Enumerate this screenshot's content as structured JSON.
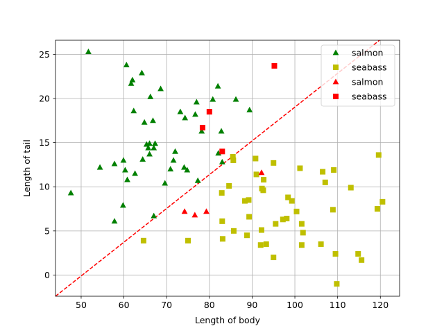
{
  "chart_data": {
    "type": "scatter",
    "title": "",
    "xlabel": "Length of body",
    "ylabel": "Length of tail",
    "xlim": [
      44,
      124.5
    ],
    "ylim": [
      -2.4,
      26.6
    ],
    "xticks": [
      50,
      60,
      70,
      80,
      90,
      100,
      110,
      120
    ],
    "yticks": [
      0,
      5,
      10,
      15,
      20,
      25
    ],
    "grid": true,
    "legend_position": "top-right",
    "decision_boundary": {
      "style": "dashed",
      "color": "#ff0000",
      "points": [
        [
          44,
          -2.4
        ],
        [
          119.8,
          26.6
        ]
      ]
    },
    "series": [
      {
        "name": "salmon",
        "marker": "triangle",
        "color": "#008000",
        "points": [
          [
            47.6,
            9.3
          ],
          [
            51.7,
            25.3
          ],
          [
            54.4,
            12.2
          ],
          [
            57.8,
            12.6
          ],
          [
            57.8,
            6.1
          ],
          [
            59.8,
            7.9
          ],
          [
            59.9,
            13.0
          ],
          [
            60.3,
            11.9
          ],
          [
            60.6,
            23.8
          ],
          [
            60.8,
            10.8
          ],
          [
            61.7,
            21.7
          ],
          [
            62.0,
            22.1
          ],
          [
            62.3,
            18.6
          ],
          [
            62.6,
            11.5
          ],
          [
            64.2,
            22.9
          ],
          [
            64.4,
            13.1
          ],
          [
            64.8,
            17.3
          ],
          [
            65.3,
            14.8
          ],
          [
            65.7,
            14.4
          ],
          [
            66.0,
            13.7
          ],
          [
            66.0,
            14.9
          ],
          [
            66.2,
            20.2
          ],
          [
            66.8,
            17.5
          ],
          [
            67.0,
            14.4
          ],
          [
            67.3,
            14.9
          ],
          [
            67.0,
            6.7
          ],
          [
            68.6,
            21.1
          ],
          [
            69.6,
            10.4
          ],
          [
            70.9,
            12.0
          ],
          [
            71.6,
            13.0
          ],
          [
            72.0,
            14.0
          ],
          [
            73.2,
            18.5
          ],
          [
            74.1,
            12.2
          ],
          [
            74.3,
            17.8
          ],
          [
            74.8,
            11.9
          ],
          [
            76.7,
            18.2
          ],
          [
            77.0,
            19.6
          ],
          [
            77.3,
            10.7
          ],
          [
            78.2,
            16.3
          ],
          [
            80.8,
            19.9
          ],
          [
            82.0,
            21.4
          ],
          [
            82.1,
            13.8
          ],
          [
            82.8,
            16.3
          ],
          [
            83.0,
            12.8
          ],
          [
            86.2,
            19.9
          ],
          [
            89.4,
            18.7
          ]
        ]
      },
      {
        "name": "seabass",
        "marker": "square",
        "color": "#bfbf00",
        "points": [
          [
            64.6,
            3.9
          ],
          [
            75.0,
            3.9
          ],
          [
            82.9,
            9.3
          ],
          [
            83.0,
            6.1
          ],
          [
            83.1,
            4.1
          ],
          [
            84.6,
            10.1
          ],
          [
            85.5,
            13.4
          ],
          [
            85.6,
            13.0
          ],
          [
            85.7,
            5.0
          ],
          [
            88.3,
            8.4
          ],
          [
            88.8,
            4.5
          ],
          [
            89.2,
            8.5
          ],
          [
            89.3,
            6.6
          ],
          [
            90.8,
            13.2
          ],
          [
            91.0,
            11.4
          ],
          [
            92.0,
            3.4
          ],
          [
            92.2,
            5.1
          ],
          [
            92.3,
            9.8
          ],
          [
            92.6,
            9.6
          ],
          [
            92.7,
            10.8
          ],
          [
            93.3,
            3.5
          ],
          [
            95.0,
            12.7
          ],
          [
            95.0,
            2.0
          ],
          [
            95.5,
            5.8
          ],
          [
            97.2,
            6.3
          ],
          [
            98.1,
            6.4
          ],
          [
            98.4,
            8.8
          ],
          [
            99.3,
            8.4
          ],
          [
            100.4,
            7.2
          ],
          [
            101.2,
            12.1
          ],
          [
            101.6,
            5.8
          ],
          [
            101.6,
            3.4
          ],
          [
            101.9,
            4.8
          ],
          [
            106.1,
            3.5
          ],
          [
            106.5,
            11.7
          ],
          [
            107.1,
            10.5
          ],
          [
            108.9,
            7.4
          ],
          [
            109.1,
            11.9
          ],
          [
            109.5,
            2.4
          ],
          [
            109.8,
            -1.0
          ],
          [
            113.1,
            9.9
          ],
          [
            114.8,
            2.4
          ],
          [
            115.6,
            1.7
          ],
          [
            119.3,
            7.5
          ],
          [
            119.6,
            13.6
          ],
          [
            120.5,
            8.3
          ]
        ]
      },
      {
        "name": "salmon",
        "marker": "triangle",
        "color": "#ff0000",
        "points": [
          [
            74.2,
            7.2
          ],
          [
            76.6,
            6.8
          ],
          [
            79.3,
            7.2
          ],
          [
            92.2,
            11.6
          ]
        ]
      },
      {
        "name": "seabass",
        "marker": "square",
        "color": "#ff0000",
        "points": [
          [
            78.4,
            16.7
          ],
          [
            80.0,
            18.5
          ],
          [
            83.0,
            14.0
          ],
          [
            95.2,
            23.7
          ]
        ]
      }
    ]
  }
}
